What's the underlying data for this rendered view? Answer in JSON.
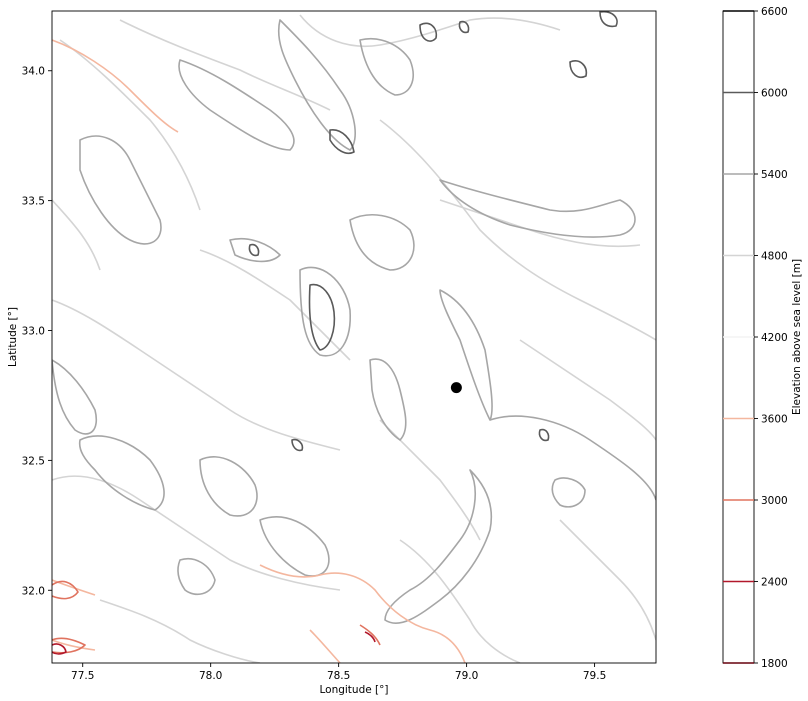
{
  "chart_data": {
    "type": "contour",
    "xlabel": "Longitude [°]",
    "ylabel": "Latitude [°]",
    "xlim": [
      77.38,
      79.74
    ],
    "ylim": [
      31.72,
      34.23
    ],
    "xticks": [
      77.5,
      78.0,
      78.5,
      79.0,
      79.5
    ],
    "xtick_labels": [
      "77.5",
      "78.0",
      "78.5",
      "79.0",
      "79.5"
    ],
    "yticks": [
      32.0,
      32.5,
      33.0,
      33.5,
      34.0
    ],
    "ytick_labels": [
      "32.0",
      "32.5",
      "33.0",
      "33.5",
      "34.0"
    ],
    "marker": {
      "lon": 78.96,
      "lat": 32.78,
      "color": "#000000"
    },
    "colorbar": {
      "label": "Elevation above sea level [m]",
      "range": [
        1800,
        6600
      ],
      "levels": [
        1800,
        2400,
        3000,
        3600,
        4200,
        4800,
        5400,
        6000,
        6600
      ],
      "level_labels": [
        "1800",
        "2400",
        "3000",
        "3600",
        "4200",
        "4800",
        "5400",
        "6000",
        "6600"
      ],
      "level_colors": [
        "#67000d",
        "#b2182b",
        "#e0735f",
        "#f4b79f",
        "#f3f3f3",
        "#d4d4d4",
        "#a6a6a6",
        "#5a5a5a",
        "#000000"
      ]
    },
    "grid": false,
    "legend": "none"
  }
}
